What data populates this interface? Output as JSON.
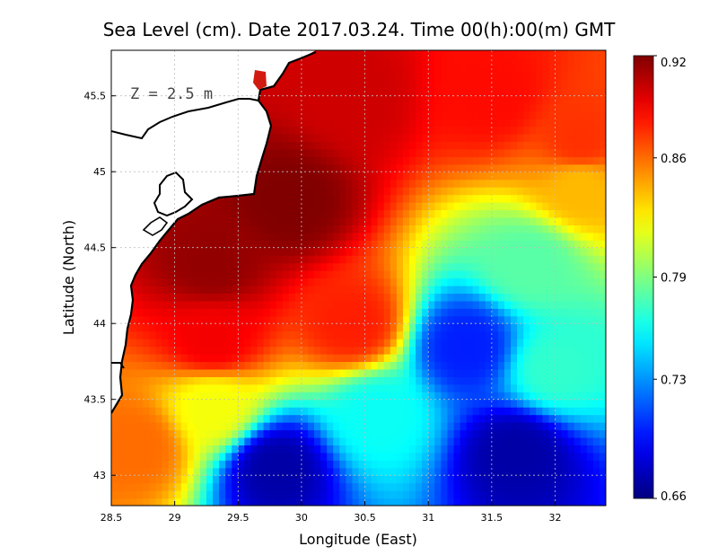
{
  "title": "Sea Level (cm). Date 2017.03.24. Time 00(h):00(m) GMT",
  "annotation": "Z = 2.5 m",
  "x_axis": {
    "label": "Longitude (East)",
    "ticks": [
      "28.5",
      "29",
      "29.5",
      "30",
      "30.5",
      "31",
      "31.5",
      "32"
    ]
  },
  "y_axis": {
    "label": "Latitude (North)",
    "ticks": [
      "43",
      "43.5",
      "44",
      "44.5",
      "45",
      "45.5"
    ]
  },
  "colorbar": {
    "ticks": [
      "0.66",
      "0.73",
      "0.79",
      "0.86",
      "0.92"
    ]
  },
  "chart_data": {
    "type": "heatmap",
    "title": "Sea Level (cm). Date 2017.03.24. Time 00(h):00(m) GMT",
    "xlabel": "Longitude (East)",
    "ylabel": "Latitude (North)",
    "xlim": [
      28.5,
      32.4
    ],
    "ylim": [
      42.8,
      45.8
    ],
    "grid": true,
    "colorbar_range": [
      0.66,
      0.92
    ],
    "colorbar_ticks": [
      0.66,
      0.73,
      0.79,
      0.86,
      0.92
    ],
    "colormap": "jet",
    "field_anchors": [
      {
        "lon": 29.3,
        "lat": 44.4,
        "value": 0.915
      },
      {
        "lon": 29.9,
        "lat": 44.8,
        "value": 0.92
      },
      {
        "lon": 30.4,
        "lat": 45.5,
        "value": 0.9
      },
      {
        "lon": 31.5,
        "lat": 45.5,
        "value": 0.885
      },
      {
        "lon": 32.2,
        "lat": 45.2,
        "value": 0.875
      },
      {
        "lon": 29.3,
        "lat": 43.9,
        "value": 0.89
      },
      {
        "lon": 30.4,
        "lat": 44.0,
        "value": 0.88
      },
      {
        "lon": 31.3,
        "lat": 43.85,
        "value": 0.7
      },
      {
        "lon": 32.0,
        "lat": 43.7,
        "value": 0.77
      },
      {
        "lon": 31.8,
        "lat": 44.4,
        "value": 0.78
      },
      {
        "lon": 32.2,
        "lat": 44.9,
        "value": 0.84
      },
      {
        "lon": 29.8,
        "lat": 43.05,
        "value": 0.67
      },
      {
        "lon": 31.7,
        "lat": 43.15,
        "value": 0.67
      },
      {
        "lon": 28.7,
        "lat": 43.2,
        "value": 0.86
      },
      {
        "lon": 29.3,
        "lat": 43.45,
        "value": 0.82
      },
      {
        "lon": 30.6,
        "lat": 43.4,
        "value": 0.76
      }
    ]
  },
  "colors": {
    "land": "#ffffff",
    "coastline": "#000000",
    "grid": "#bfbfbf"
  }
}
